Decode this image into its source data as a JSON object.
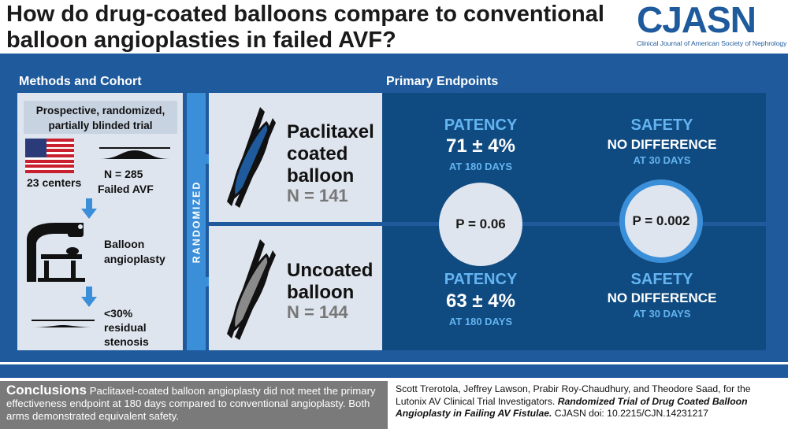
{
  "header": {
    "title": "How do drug-coated balloons compare to conventional balloon angioplasties in failed AVF?",
    "logo": "CJASN",
    "logo_sub": "Clinical Journal of American Society of Nephrology"
  },
  "methods": {
    "heading": "Methods and Cohort",
    "trial": "Prospective, randomized, partially blinded trial",
    "centers": "23 centers",
    "n": "N = 285",
    "failed": "Failed AVF",
    "procedure_1": "Balloon",
    "procedure_2": "angioplasty",
    "stenosis_1": "<30%",
    "stenosis_2": "residual",
    "stenosis_3": "stenosis"
  },
  "randomized_label": "RANDOMIZED",
  "endpoints": {
    "heading": "Primary Endpoints",
    "coated": {
      "name_1": "Paclitaxel",
      "name_2": "coated",
      "name_3": "balloon",
      "n": "N = 141",
      "patency_head": "PATENCY",
      "patency_value": "71 ± 4%",
      "patency_time": "AT 180 DAYS",
      "safety_head": "SAFETY",
      "safety_value": "NO DIFFERENCE",
      "safety_time": "AT 30 DAYS"
    },
    "uncoated": {
      "name_1": "Uncoated",
      "name_2": "balloon",
      "n": "N = 144",
      "patency_head": "PATENCY",
      "patency_value": "63 ± 4%",
      "patency_time": "AT 180 DAYS",
      "safety_head": "SAFETY",
      "safety_value": "NO DIFFERENCE",
      "safety_time": "AT 30 DAYS"
    },
    "p_patency": "P = 0.06",
    "p_safety": "P = 0.002"
  },
  "conclusions": {
    "heading": "Conclusions",
    "text": "Paclitaxel-coated balloon angioplasty did not meet the primary effectiveness endpoint at 180 days compared to conventional angioplasty. Both arms demonstrated equivalent safety."
  },
  "citation": {
    "authors": "Scott Trerotola, Jeffrey Lawson, Prabir Roy-Chaudhury, and Theodore Saad, for the Lutonix AV Clinical Trial Investigators.",
    "title": "Randomized Trial of Drug Coated Balloon Angioplasty in Failing AV Fistulae.",
    "doi": "CJASN doi: 10.2215/CJN.14231217"
  },
  "colors": {
    "brand_blue": "#1e5a9c",
    "dark_blue": "#0f4a80",
    "light_blue": "#3b8fd9",
    "accent_blue": "#63b4f1",
    "panel_grey": "#dfe5ee"
  }
}
